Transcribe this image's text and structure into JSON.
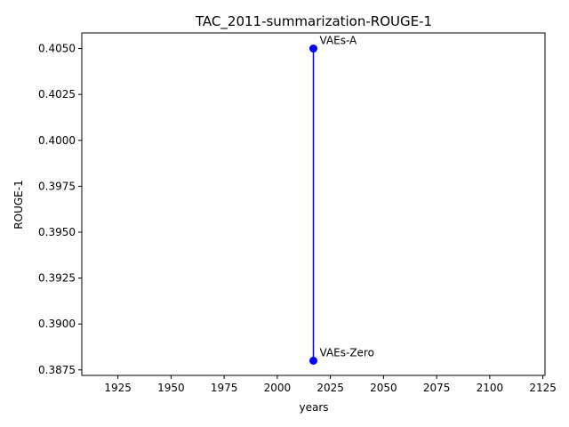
{
  "chart_data": {
    "type": "line",
    "title": "TAC_2011-summarization-ROUGE-1",
    "xlabel": "years",
    "ylabel": "ROUGE-1",
    "xlim": [
      1908,
      2126
    ],
    "ylim": [
      0.3872,
      0.40585
    ],
    "xticks": [
      1925,
      1950,
      1975,
      2000,
      2025,
      2050,
      2075,
      2100,
      2125
    ],
    "yticks": [
      0.3875,
      0.39,
      0.3925,
      0.395,
      0.3975,
      0.4,
      0.4025,
      0.405
    ],
    "ytick_labels": [
      "0.3875",
      "0.3900",
      "0.3925",
      "0.3950",
      "0.3975",
      "0.4000",
      "0.4025",
      "0.4050"
    ],
    "series": [
      {
        "name": "ROUGE-1",
        "color": "#0000ff",
        "points": [
          {
            "x": 2017,
            "y": 0.405,
            "label": "VAEs-A"
          },
          {
            "x": 2017,
            "y": 0.388,
            "label": "VAEs-Zero"
          }
        ]
      }
    ],
    "grid": false
  }
}
